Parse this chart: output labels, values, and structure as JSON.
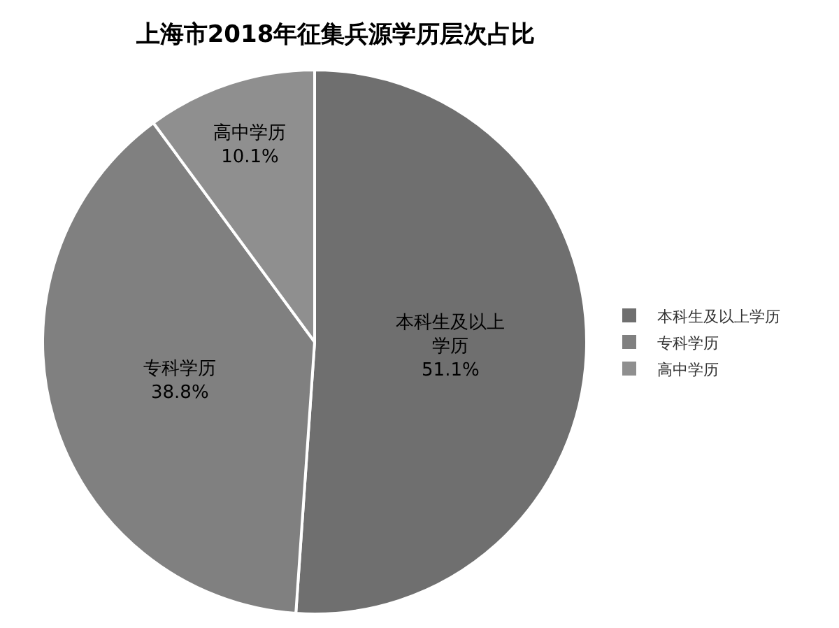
{
  "chart_data": {
    "type": "pie",
    "title": "上海市2018年征集兵源学历层次占比",
    "categories": [
      "本科生及以上学历",
      "专科学历",
      "高中学历"
    ],
    "values": [
      51.1,
      38.8,
      10.1
    ],
    "colors": [
      "#6f6f6f",
      "#808080",
      "#8f8f8f"
    ],
    "value_labels": [
      "本科生及以上学历51.1%",
      "专科学历38.8%",
      "高中学历10.1%"
    ],
    "legend": "right"
  }
}
